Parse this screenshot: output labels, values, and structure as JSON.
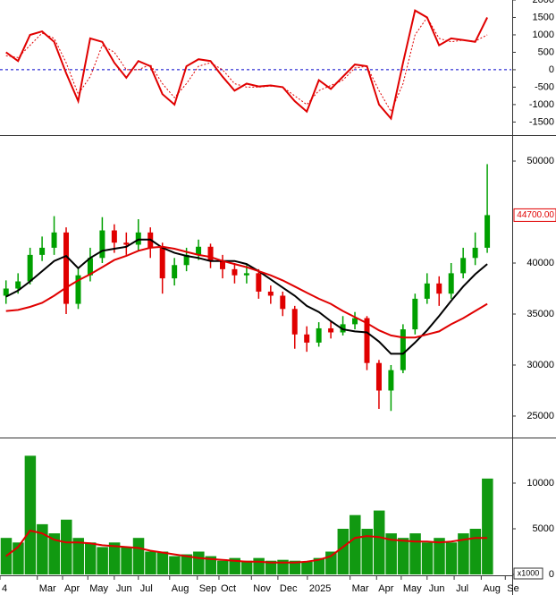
{
  "chart_data": [
    {
      "type": "line",
      "x": [
        1,
        3,
        5,
        7,
        9,
        11,
        13,
        15,
        17,
        19,
        21,
        23,
        25,
        27,
        29,
        31,
        33,
        35,
        37,
        39,
        41,
        43,
        45,
        47,
        49,
        51,
        53,
        55,
        57,
        59,
        61,
        63,
        65,
        67,
        69,
        71,
        73,
        75,
        77,
        79,
        81
      ],
      "xlim": [
        0,
        85
      ],
      "ylim": [
        -1850,
        2000
      ],
      "yticks": [
        2000,
        1500,
        1000,
        500,
        0,
        -500,
        -1000,
        -1500
      ],
      "hline": 0,
      "hline_color": "#0000cc",
      "series": [
        {
          "color": "#e00000",
          "dash": false,
          "values": [
            500,
            250,
            1000,
            1100,
            800,
            -100,
            -900,
            900,
            800,
            200,
            -230,
            250,
            100,
            -700,
            -1000,
            100,
            300,
            250,
            -200,
            -600,
            -400,
            -480,
            -450,
            -500,
            -900,
            -1200,
            -300,
            -550,
            -200,
            150,
            100,
            -1000,
            -1400,
            200,
            1700,
            1500,
            700,
            900,
            850,
            800,
            1500
          ]
        },
        {
          "color": "#e00000",
          "dash": true,
          "values": [
            400,
            350,
            700,
            1050,
            900,
            200,
            -700,
            -200,
            700,
            500,
            0,
            0,
            150,
            -400,
            -800,
            -400,
            100,
            200,
            0,
            -400,
            -500,
            -500,
            -470,
            -500,
            -750,
            -1000,
            -600,
            -450,
            -300,
            50,
            100,
            -600,
            -1200,
            -400,
            1000,
            1500,
            900,
            800,
            850,
            820,
            1000
          ]
        }
      ]
    },
    {
      "type": "candlestick",
      "x": [
        1,
        3,
        5,
        7,
        9,
        11,
        13,
        15,
        17,
        19,
        21,
        23,
        25,
        27,
        29,
        31,
        33,
        35,
        37,
        39,
        41,
        43,
        45,
        47,
        49,
        51,
        53,
        55,
        57,
        59,
        61,
        63,
        65,
        67,
        69,
        71,
        73,
        75,
        77,
        79,
        81
      ],
      "xlim": [
        0,
        85
      ],
      "ylim": [
        22980,
        52370
      ],
      "yticks": [
        50000,
        40000,
        35000,
        30000,
        25000
      ],
      "up_color": "#00a000",
      "down_color": "#e00000",
      "open": [
        36800,
        37500,
        38200,
        40800,
        41500,
        43000,
        36000,
        38800,
        40500,
        43200,
        42000,
        41800,
        43000,
        41500,
        38500,
        39800,
        40800,
        41600,
        40200,
        39400,
        38800,
        39000,
        37200,
        36800,
        35500,
        33000,
        32200,
        33600,
        33200,
        34000,
        34600,
        30200,
        27500,
        29500,
        33500,
        36500,
        38000,
        37000,
        39000,
        40500,
        41500
      ],
      "high": [
        38300,
        39000,
        41500,
        42600,
        44600,
        43500,
        39500,
        41500,
        44500,
        43800,
        43000,
        44300,
        43500,
        42000,
        40500,
        41500,
        42300,
        41900,
        40800,
        40000,
        39800,
        39400,
        37800,
        37200,
        35800,
        33800,
        34200,
        34300,
        34800,
        35200,
        34800,
        30500,
        30000,
        34000,
        37000,
        39000,
        38700,
        40000,
        41500,
        43000,
        49700
      ],
      "low": [
        36000,
        37000,
        37900,
        40200,
        40800,
        35000,
        35500,
        38200,
        40000,
        41000,
        40800,
        41200,
        40500,
        37000,
        37800,
        39200,
        40300,
        39500,
        38500,
        38000,
        38000,
        36500,
        36000,
        34800,
        31600,
        31300,
        31800,
        32600,
        32900,
        33500,
        29500,
        25700,
        25500,
        29200,
        33000,
        36000,
        35800,
        36500,
        38500,
        39800,
        41000
      ],
      "close": [
        37500,
        38200,
        40800,
        41500,
        43000,
        36000,
        38800,
        40500,
        43200,
        42000,
        41800,
        43000,
        41500,
        38500,
        39800,
        40800,
        41600,
        40200,
        39400,
        38800,
        39000,
        37200,
        36800,
        35500,
        33000,
        32200,
        33600,
        33200,
        34000,
        34600,
        30200,
        27500,
        29500,
        33500,
        36500,
        38000,
        37000,
        39000,
        40500,
        41500,
        44700
      ],
      "series": [
        {
          "color": "#000000",
          "values": [
            36700,
            37300,
            38200,
            39200,
            40200,
            40700,
            39500,
            40500,
            41200,
            41400,
            41600,
            42300,
            42300,
            41500,
            41000,
            40700,
            40500,
            40200,
            40200,
            40200,
            39900,
            39200,
            38400,
            37600,
            36800,
            35800,
            35200,
            34300,
            33500,
            33300,
            33200,
            32300,
            31100,
            31100,
            32200,
            33400,
            34800,
            36300,
            37700,
            38900,
            39900
          ]
        },
        {
          "color": "#e00000",
          "values": [
            35300,
            35400,
            35700,
            36100,
            36800,
            37600,
            38300,
            38900,
            39600,
            40300,
            40700,
            41200,
            41500,
            41600,
            41400,
            41100,
            40800,
            40600,
            40200,
            39900,
            39600,
            39200,
            38800,
            38300,
            37700,
            37100,
            36500,
            36000,
            35300,
            34700,
            34100,
            33400,
            32900,
            32700,
            32700,
            33000,
            33300,
            34000,
            34600,
            35300,
            36000
          ]
        }
      ],
      "last_price": {
        "value": 44700,
        "label": "44700.00"
      }
    },
    {
      "type": "bar",
      "x": [
        1,
        3,
        5,
        7,
        9,
        11,
        13,
        15,
        17,
        19,
        21,
        23,
        25,
        27,
        29,
        31,
        33,
        35,
        37,
        39,
        41,
        43,
        45,
        47,
        49,
        51,
        53,
        55,
        57,
        59,
        61,
        63,
        65,
        67,
        69,
        71,
        73,
        75,
        77,
        79,
        81
      ],
      "xlim": [
        0,
        85
      ],
      "ylim": [
        0,
        14800
      ],
      "yticks": [
        10000,
        5000,
        0
      ],
      "unit_label": "x1000",
      "color": "#119911",
      "values": [
        4000,
        3500,
        13000,
        5500,
        4500,
        6000,
        4000,
        3500,
        3000,
        3500,
        3000,
        4000,
        2500,
        2500,
        2000,
        2200,
        2500,
        2000,
        1500,
        1800,
        1500,
        1800,
        1500,
        1600,
        1500,
        1400,
        1800,
        2500,
        5000,
        6500,
        5000,
        7000,
        4500,
        4000,
        4500,
        3500,
        4000,
        3500,
        4500,
        5000,
        10500
      ],
      "series": [
        {
          "color": "#e00000",
          "values": [
            2000,
            3000,
            4800,
            4500,
            3800,
            3500,
            3500,
            3400,
            3200,
            3100,
            3000,
            2900,
            2600,
            2400,
            2200,
            2000,
            1800,
            1700,
            1600,
            1500,
            1400,
            1400,
            1300,
            1300,
            1300,
            1400,
            1600,
            2000,
            3000,
            4000,
            4200,
            4100,
            3800,
            3700,
            3600,
            3600,
            3500,
            3600,
            3800,
            4000,
            4000
          ]
        }
      ],
      "xticks": [
        {
          "value": 0,
          "label": "4"
        },
        {
          "value": 6.2,
          "label": "Mar"
        },
        {
          "value": 10.4,
          "label": "Apr"
        },
        {
          "value": 14.6,
          "label": "May"
        },
        {
          "value": 19,
          "label": "Jun"
        },
        {
          "value": 23,
          "label": "Jul"
        },
        {
          "value": 28.2,
          "label": "Aug"
        },
        {
          "value": 32.8,
          "label": "Sep"
        },
        {
          "value": 36.4,
          "label": "Oct"
        },
        {
          "value": 41.8,
          "label": "Nov"
        },
        {
          "value": 46.2,
          "label": "Dec"
        },
        {
          "value": 51.1,
          "label": "2025"
        },
        {
          "value": 58.2,
          "label": "Mar"
        },
        {
          "value": 62.6,
          "label": "Apr"
        },
        {
          "value": 66.7,
          "label": "May"
        },
        {
          "value": 71,
          "label": "Jun"
        },
        {
          "value": 75.5,
          "label": "Jul"
        },
        {
          "value": 80,
          "label": "Aug"
        },
        {
          "value": 84,
          "label": "Se"
        }
      ]
    }
  ]
}
